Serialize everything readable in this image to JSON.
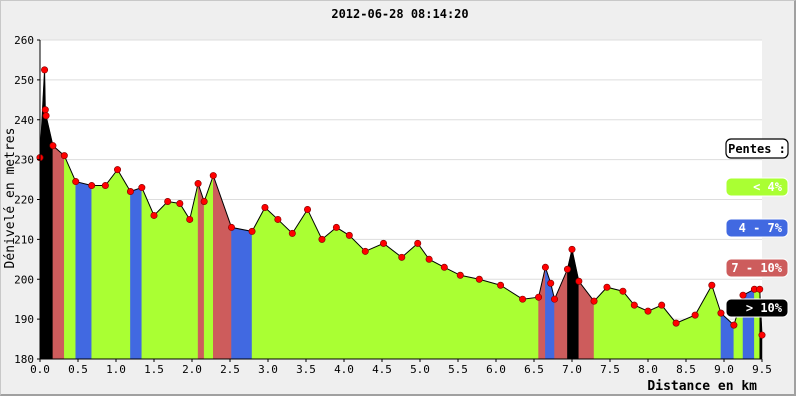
{
  "chart_data": {
    "type": "area",
    "title": "2012-06-28 08:14:20",
    "xlabel": "Distance en km",
    "ylabel": "Dénivelé en metres",
    "xlim": [
      0,
      9.5
    ],
    "ylim": [
      180,
      260
    ],
    "xticks": [
      "0.0",
      "0.5",
      "1.0",
      "1.5",
      "2.0",
      "2.5",
      "3.0",
      "3.5",
      "4.0",
      "4.5",
      "5.0",
      "5.5",
      "6.0",
      "6.5",
      "7.0",
      "7.5",
      "8.0",
      "8.5",
      "9.0",
      "9.5"
    ],
    "yticks": [
      "180",
      "190",
      "200",
      "210",
      "220",
      "230",
      "240",
      "250",
      "260"
    ],
    "grid": true,
    "x": [
      0.0,
      0.06,
      0.07,
      0.08,
      0.17,
      0.32,
      0.47,
      0.68,
      0.86,
      1.02,
      1.19,
      1.34,
      1.5,
      1.68,
      1.84,
      1.97,
      2.08,
      2.16,
      2.28,
      2.52,
      2.79,
      2.96,
      3.13,
      3.32,
      3.52,
      3.71,
      3.9,
      4.07,
      4.28,
      4.52,
      4.76,
      4.97,
      5.12,
      5.32,
      5.53,
      5.78,
      6.06,
      6.35,
      6.56,
      6.65,
      6.72,
      6.77,
      6.94,
      7.0,
      7.09,
      7.29,
      7.46,
      7.67,
      7.82,
      8.0,
      8.18,
      8.37,
      8.62,
      8.84,
      8.96,
      9.13,
      9.25,
      9.4,
      9.47,
      9.5
    ],
    "y": [
      230.5,
      252.5,
      242.5,
      241.0,
      233.5,
      231.0,
      224.5,
      223.5,
      223.5,
      227.5,
      222.0,
      223.0,
      216.0,
      219.5,
      219.0,
      215.0,
      224.0,
      219.5,
      226.0,
      213.0,
      212.0,
      218.0,
      215.0,
      211.5,
      217.5,
      210.0,
      213.0,
      211.0,
      207.0,
      209.0,
      205.5,
      209.0,
      205.0,
      203.0,
      201.0,
      200.0,
      198.5,
      195.0,
      195.5,
      203.0,
      199.0,
      195.0,
      202.5,
      207.5,
      199.5,
      194.5,
      198.0,
      197.0,
      193.5,
      192.0,
      193.5,
      189.0,
      191.0,
      198.5,
      191.5,
      188.5,
      196.0,
      197.5,
      197.5,
      186.0
    ],
    "segments": [
      {
        "from": 0.0,
        "to": 0.07,
        "cls": "steep"
      },
      {
        "from": 0.07,
        "to": 0.17,
        "cls": "steep"
      },
      {
        "from": 0.17,
        "to": 0.32,
        "cls": "hard"
      },
      {
        "from": 0.32,
        "to": 0.47,
        "cls": "flat"
      },
      {
        "from": 0.47,
        "to": 0.68,
        "cls": "medium"
      },
      {
        "from": 0.68,
        "to": 1.19,
        "cls": "flat"
      },
      {
        "from": 1.19,
        "to": 1.34,
        "cls": "medium"
      },
      {
        "from": 1.34,
        "to": 2.08,
        "cls": "flat"
      },
      {
        "from": 2.08,
        "to": 2.16,
        "cls": "hard"
      },
      {
        "from": 2.16,
        "to": 2.28,
        "cls": "flat"
      },
      {
        "from": 2.28,
        "to": 2.52,
        "cls": "hard"
      },
      {
        "from": 2.52,
        "to": 2.79,
        "cls": "medium"
      },
      {
        "from": 2.79,
        "to": 6.56,
        "cls": "flat"
      },
      {
        "from": 6.56,
        "to": 6.65,
        "cls": "hard"
      },
      {
        "from": 6.65,
        "to": 6.77,
        "cls": "medium"
      },
      {
        "from": 6.77,
        "to": 6.94,
        "cls": "hard"
      },
      {
        "from": 6.94,
        "to": 7.09,
        "cls": "steep"
      },
      {
        "from": 7.09,
        "to": 7.29,
        "cls": "hard"
      },
      {
        "from": 7.29,
        "to": 8.96,
        "cls": "flat"
      },
      {
        "from": 8.96,
        "to": 9.13,
        "cls": "medium"
      },
      {
        "from": 9.13,
        "to": 9.25,
        "cls": "flat"
      },
      {
        "from": 9.25,
        "to": 9.4,
        "cls": "medium"
      },
      {
        "from": 9.4,
        "to": 9.47,
        "cls": "flat"
      },
      {
        "from": 9.47,
        "to": 9.5,
        "cls": "steep"
      }
    ],
    "legend": {
      "title": "Pentes :",
      "placement": "right",
      "items": [
        {
          "label": "< 4%",
          "cls": "flat"
        },
        {
          "label": "4 - 7%",
          "cls": "medium"
        },
        {
          "label": "7 - 10%",
          "cls": "hard"
        },
        {
          "label": "> 10%",
          "cls": "steep"
        }
      ]
    },
    "colors": {
      "flat": "#aaff33",
      "medium": "#4169e1",
      "hard": "#cd5c5c",
      "steep": "#000000",
      "point": "#ff0000",
      "line": "#000000",
      "grid": "#dddddd"
    }
  }
}
